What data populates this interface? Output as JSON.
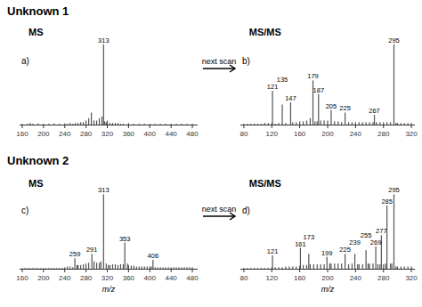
{
  "chart_data": [
    {
      "type": "bar",
      "title": "Unknown 1",
      "subtitle": "MS",
      "annotations": [
        {
          "text": "a)"
        },
        {
          "x": 313,
          "y": 1.0,
          "text": "313"
        },
        {
          "text": "next scan",
          "arrow": "right"
        }
      ],
      "x": [
        160,
        170,
        175,
        180,
        190,
        200,
        210,
        220,
        230,
        240,
        245,
        250,
        255,
        260,
        265,
        270,
        275,
        280,
        285,
        290,
        295,
        300,
        305,
        310,
        313,
        315,
        318,
        320,
        325,
        330,
        335,
        340,
        345,
        350,
        360,
        370,
        380,
        390,
        400,
        410,
        420,
        430,
        440,
        450,
        460,
        470,
        480
      ],
      "values": [
        0.01,
        0.01,
        0.02,
        0.01,
        0.015,
        0.01,
        0.01,
        0.015,
        0.01,
        0.015,
        0.01,
        0.02,
        0.01,
        0.02,
        0.02,
        0.03,
        0.03,
        0.05,
        0.08,
        0.15,
        0.05,
        0.05,
        0.08,
        0.1,
        1.0,
        0.04,
        0.03,
        0.05,
        0.02,
        0.02,
        0.02,
        0.02,
        0.01,
        0.01,
        0.02,
        0.01,
        0.01,
        0.01,
        0.01,
        0.01,
        0.01,
        0.01,
        0.01,
        0.01,
        0.01,
        0.01,
        0.01
      ],
      "xlim": [
        155,
        490
      ],
      "xticks": [
        160,
        200,
        240,
        280,
        320,
        360,
        400,
        440,
        480
      ],
      "ylim": [
        0,
        1.22
      ],
      "yticks": [],
      "tick_labels": "x",
      "color": "#555555"
    },
    {
      "type": "bar",
      "subtitle": "MS/MS",
      "annotations": [
        {
          "text": "b)"
        },
        {
          "x": 121,
          "y": 0.42,
          "text": "121"
        },
        {
          "x": 135,
          "y": 0.25,
          "text": "135"
        },
        {
          "x": 147,
          "y": 0.28,
          "text": "147"
        },
        {
          "x": 179,
          "y": 0.55,
          "text": "179"
        },
        {
          "x": 187,
          "y": 0.38,
          "text": "187"
        },
        {
          "x": 205,
          "y": 0.18,
          "text": "205"
        },
        {
          "x": 225,
          "y": 0.15,
          "text": "225"
        },
        {
          "x": 267,
          "y": 0.12,
          "text": "267"
        },
        {
          "x": 295,
          "y": 1.0,
          "text": "295"
        }
      ],
      "x": [
        80,
        85,
        90,
        95,
        100,
        105,
        110,
        115,
        120,
        121,
        125,
        130,
        135,
        140,
        147,
        150,
        155,
        160,
        165,
        170,
        175,
        179,
        182,
        185,
        187,
        190,
        195,
        200,
        205,
        210,
        215,
        220,
        225,
        230,
        235,
        240,
        245,
        250,
        255,
        260,
        265,
        267,
        270,
        275,
        280,
        285,
        290,
        295,
        298,
        300,
        305,
        310,
        315,
        320
      ],
      "values": [
        0.01,
        0.01,
        0.01,
        0.01,
        0.01,
        0.01,
        0.02,
        0.02,
        0.02,
        0.42,
        0.01,
        0.02,
        0.25,
        0.02,
        0.28,
        0.03,
        0.03,
        0.04,
        0.04,
        0.05,
        0.08,
        0.55,
        0.04,
        0.04,
        0.38,
        0.05,
        0.05,
        0.05,
        0.18,
        0.04,
        0.04,
        0.03,
        0.15,
        0.03,
        0.03,
        0.03,
        0.03,
        0.03,
        0.03,
        0.03,
        0.03,
        0.12,
        0.03,
        0.03,
        0.03,
        0.03,
        0.03,
        1.0,
        0.02,
        0.02,
        0.02,
        0.02,
        0.02,
        0.02
      ],
      "xlim": [
        75,
        325
      ],
      "xticks": [
        80,
        120,
        160,
        200,
        240,
        280,
        320
      ],
      "ylim": [
        0,
        1.22
      ],
      "yticks": [],
      "tick_labels": "x",
      "color": "#555555"
    },
    {
      "type": "bar",
      "title": "Unknown 2",
      "subtitle": "MS",
      "xlabel": "m/z",
      "annotations": [
        {
          "text": "c)"
        },
        {
          "x": 259,
          "y": 0.14,
          "text": "259"
        },
        {
          "x": 291,
          "y": 0.2,
          "text": "291"
        },
        {
          "x": 313,
          "y": 1.0,
          "text": "313"
        },
        {
          "x": 353,
          "y": 0.35,
          "text": "353"
        },
        {
          "x": 406,
          "y": 0.12,
          "text": "406"
        },
        {
          "text": "next scan",
          "arrow": "right"
        }
      ],
      "x": [
        160,
        165,
        170,
        175,
        180,
        185,
        190,
        195,
        200,
        205,
        210,
        215,
        220,
        225,
        230,
        235,
        240,
        245,
        250,
        255,
        259,
        263,
        265,
        270,
        275,
        280,
        285,
        291,
        295,
        300,
        305,
        308,
        313,
        318,
        322,
        325,
        330,
        335,
        340,
        345,
        350,
        353,
        358,
        360,
        365,
        370,
        375,
        380,
        385,
        390,
        395,
        400,
        403,
        406,
        410,
        415,
        420,
        425,
        430,
        435,
        440,
        445,
        450,
        455,
        460,
        465,
        470,
        475,
        480
      ],
      "values": [
        0.01,
        0.01,
        0.01,
        0.01,
        0.01,
        0.01,
        0.01,
        0.01,
        0.01,
        0.01,
        0.01,
        0.01,
        0.01,
        0.01,
        0.01,
        0.01,
        0.02,
        0.03,
        0.03,
        0.02,
        0.14,
        0.05,
        0.05,
        0.05,
        0.06,
        0.07,
        0.08,
        0.2,
        0.1,
        0.08,
        0.08,
        0.1,
        1.0,
        0.07,
        0.05,
        0.05,
        0.06,
        0.06,
        0.05,
        0.06,
        0.06,
        0.35,
        0.07,
        0.05,
        0.04,
        0.04,
        0.03,
        0.03,
        0.03,
        0.03,
        0.03,
        0.03,
        0.03,
        0.12,
        0.02,
        0.02,
        0.02,
        0.02,
        0.02,
        0.02,
        0.02,
        0.02,
        0.02,
        0.02,
        0.02,
        0.02,
        0.02,
        0.02,
        0.02
      ],
      "xlim": [
        155,
        490
      ],
      "xticks": [
        160,
        200,
        240,
        280,
        320,
        360,
        400,
        440,
        480
      ],
      "ylim": [
        0,
        1.22
      ],
      "yticks": [],
      "tick_labels": "x",
      "color": "#555555"
    },
    {
      "type": "bar",
      "subtitle": "MS/MS",
      "xlabel": "m/z",
      "annotations": [
        {
          "text": "d)"
        },
        {
          "x": 121,
          "y": 0.18,
          "text": "121"
        },
        {
          "x": 161,
          "y": 0.28,
          "text": "161"
        },
        {
          "x": 173,
          "y": 0.2,
          "text": "173"
        },
        {
          "x": 199,
          "y": 0.16,
          "text": "199"
        },
        {
          "x": 225,
          "y": 0.2,
          "text": "225"
        },
        {
          "x": 239,
          "y": 0.2,
          "text": "239"
        },
        {
          "x": 255,
          "y": 0.25,
          "text": "255"
        },
        {
          "x": 269,
          "y": 0.3,
          "text": "269"
        },
        {
          "x": 277,
          "y": 0.45,
          "text": "277"
        },
        {
          "x": 285,
          "y": 0.85,
          "text": "285"
        },
        {
          "x": 295,
          "y": 1.0,
          "text": "295"
        }
      ],
      "x": [
        80,
        85,
        90,
        95,
        100,
        105,
        110,
        115,
        120,
        121,
        125,
        130,
        135,
        140,
        145,
        150,
        155,
        160,
        161,
        165,
        170,
        173,
        175,
        180,
        185,
        190,
        195,
        199,
        203,
        205,
        210,
        215,
        220,
        225,
        230,
        235,
        239,
        243,
        245,
        250,
        255,
        258,
        260,
        265,
        269,
        272,
        275,
        277,
        280,
        283,
        285,
        290,
        292,
        295,
        298,
        300,
        305,
        310,
        315,
        320
      ],
      "values": [
        0.01,
        0.01,
        0.01,
        0.01,
        0.01,
        0.01,
        0.01,
        0.01,
        0.02,
        0.18,
        0.02,
        0.02,
        0.02,
        0.03,
        0.03,
        0.03,
        0.03,
        0.04,
        0.28,
        0.05,
        0.05,
        0.2,
        0.06,
        0.06,
        0.06,
        0.06,
        0.06,
        0.16,
        0.07,
        0.07,
        0.07,
        0.07,
        0.07,
        0.2,
        0.06,
        0.07,
        0.2,
        0.06,
        0.06,
        0.06,
        0.25,
        0.07,
        0.07,
        0.07,
        0.3,
        0.06,
        0.06,
        0.45,
        0.06,
        0.07,
        0.85,
        0.07,
        0.07,
        1.0,
        0.03,
        0.03,
        0.03,
        0.03,
        0.03,
        0.03
      ],
      "xlim": [
        75,
        325
      ],
      "xticks": [
        80,
        120,
        160,
        200,
        240,
        280,
        320
      ],
      "ylim": [
        0,
        1.22
      ],
      "yticks": [],
      "tick_labels": "x",
      "color": "#555555"
    }
  ]
}
